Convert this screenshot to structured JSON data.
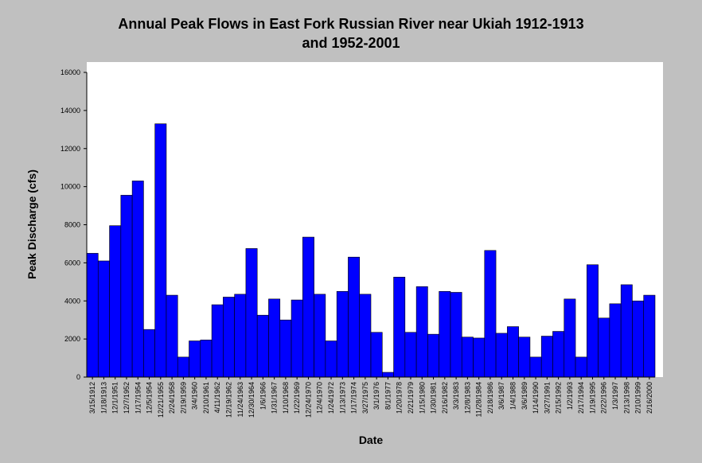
{
  "chart_data": {
    "type": "bar",
    "title_line1": "Annual Peak Flows in East Fork Russian River near Ukiah 1912-1913",
    "title_line2": "and 1952-2001",
    "xlabel": "Date",
    "ylabel": "Peak Discharge (cfs)",
    "ylim": [
      0,
      16000
    ],
    "yticks": [
      0,
      2000,
      4000,
      6000,
      8000,
      10000,
      12000,
      14000,
      16000
    ],
    "grid": false,
    "bar_color": "#0000ff",
    "plot_background": "#ffffff",
    "page_background": "#c0c0c0",
    "categories": [
      "3/15/1912",
      "1/18/1913",
      "12/1/1951",
      "12/7/1952",
      "1/17/1954",
      "12/5/1954",
      "12/21/1955",
      "2/24/1958",
      "2/19/1959",
      "3/4/1960",
      "2/10/1961",
      "4/11/1962",
      "12/19/1962",
      "11/24/1963",
      "12/30/1964",
      "1/6/1966",
      "1/31/1967",
      "1/10/1968",
      "1/22/1969",
      "12/24/1970",
      "12/4/1970",
      "1/24/1972",
      "1/13/1973",
      "1/17/1974",
      "3/27/1975",
      "3/1/1976",
      "8/1/1977",
      "1/20/1978",
      "2/21/1979",
      "1/15/1980",
      "1/30/1981",
      "2/16/1982",
      "3/3/1983",
      "12/8/1983",
      "11/28/1984",
      "2/18/1986",
      "3/6/1987",
      "1/4/1988",
      "3/6/1989",
      "1/14/1990",
      "3/27/1991",
      "2/15/1992",
      "1/2/1993",
      "2/17/1994",
      "1/19/1995",
      "2/22/1996",
      "1/3/1997",
      "2/13/1998",
      "2/10/1999",
      "2/16/2000"
    ],
    "values": [
      6500,
      6100,
      7950,
      9550,
      10300,
      2500,
      13300,
      4300,
      1050,
      1900,
      1950,
      3800,
      4200,
      4350,
      6750,
      3250,
      4100,
      3000,
      4050,
      7350,
      4350,
      1900,
      4500,
      6300,
      4350,
      2350,
      250,
      5250,
      2350,
      4750,
      2250,
      4500,
      4450,
      2100,
      2050,
      6650,
      2300,
      2650,
      2100,
      1050,
      2150,
      2400,
      4100,
      1050,
      5900,
      3100,
      3850,
      4850,
      4000,
      4300
    ]
  }
}
